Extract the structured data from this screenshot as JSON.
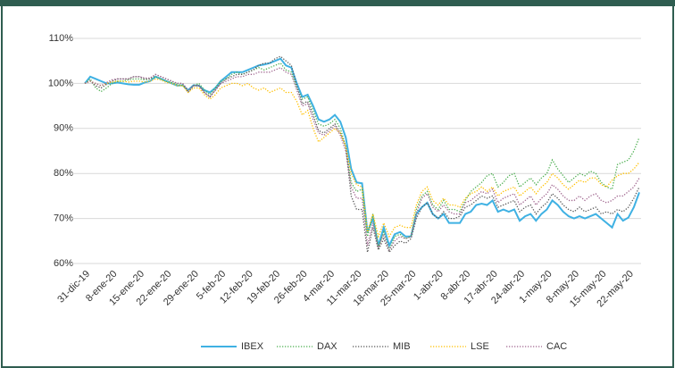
{
  "chart_data": {
    "type": "line",
    "categories": [
      "31-dic-19",
      null,
      null,
      null,
      null,
      "8-ene-20",
      null,
      null,
      null,
      null,
      "15-ene-20",
      null,
      null,
      null,
      null,
      "22-ene-20",
      null,
      null,
      null,
      null,
      "29-ene-20",
      null,
      null,
      null,
      null,
      "5-feb-20",
      null,
      null,
      null,
      null,
      "12-feb-20",
      null,
      null,
      null,
      null,
      "19-feb-20",
      null,
      null,
      null,
      null,
      "26-feb-20",
      null,
      null,
      null,
      null,
      "4-mar-20",
      null,
      null,
      null,
      null,
      "11-mar-20",
      null,
      null,
      null,
      null,
      "18-mar-20",
      null,
      null,
      null,
      null,
      "25-mar-20",
      null,
      null,
      null,
      null,
      "1-abr-20",
      null,
      null,
      null,
      null,
      "8-abr-20",
      null,
      null,
      null,
      null,
      "17-abr-20",
      null,
      null,
      null,
      null,
      "24-abr-20",
      null,
      null,
      null,
      null,
      "1-may-20",
      null,
      null,
      null,
      null,
      "8-may-20",
      null,
      null,
      null,
      null,
      "15-may-20",
      null,
      null,
      null,
      null,
      "22-may-20",
      null,
      null
    ],
    "ylim": [
      60,
      110
    ],
    "yticks": [
      {
        "value": 60,
        "label": "60%"
      },
      {
        "value": 70,
        "label": "70%"
      },
      {
        "value": 80,
        "label": "80%"
      },
      {
        "value": 90,
        "label": "90%"
      },
      {
        "value": 100,
        "label": "100%"
      },
      {
        "value": 110,
        "label": "110%"
      }
    ],
    "grid": true,
    "legend": "bottom",
    "series": [
      {
        "name": "IBEX",
        "color": "#3fb1e3",
        "style": "solid",
        "values": [
          100,
          101.5,
          101,
          100.5,
          100,
          100,
          100.2,
          100,
          99.8,
          99.7,
          99.7,
          100.2,
          100.5,
          101.5,
          101,
          100.5,
          100,
          99.5,
          99.6,
          98.5,
          99.6,
          99.5,
          98.5,
          98,
          99,
          100.5,
          101.5,
          102.5,
          102.5,
          102.5,
          103,
          103.5,
          104,
          104.2,
          104.5,
          105,
          105.5,
          104,
          103.5,
          100,
          97,
          97.5,
          95,
          92,
          91.5,
          92,
          93,
          91.5,
          88,
          81,
          78,
          77.8,
          67,
          70,
          64,
          68,
          64,
          66.5,
          67,
          66,
          66,
          71,
          72.5,
          73.5,
          71,
          70,
          71,
          69,
          69,
          69,
          71,
          71.5,
          73,
          73.3,
          73,
          74,
          71.5,
          72,
          71.5,
          72,
          69.5,
          70.5,
          71,
          69.5,
          71,
          72,
          74,
          73,
          71.5,
          70.5,
          70,
          70.5,
          70,
          70.5,
          71,
          70,
          69,
          68,
          71,
          69.5,
          70.2,
          72.5,
          75.8
        ]
      },
      {
        "name": "DAX",
        "color": "#4caf50",
        "style": "dotted",
        "values": [
          100,
          101,
          99,
          98.2,
          99,
          100,
          100.5,
          100.5,
          100.8,
          101,
          101,
          100.8,
          101,
          101.5,
          101,
          100.5,
          100.2,
          99.8,
          99.5,
          98.5,
          99.5,
          100,
          98.5,
          97.5,
          99,
          100.5,
          101,
          102,
          102.5,
          102,
          102.5,
          103,
          103.5,
          103,
          103.5,
          104,
          104.5,
          103,
          102.5,
          99,
          96.5,
          97,
          94,
          91,
          90.5,
          91,
          92,
          90,
          86,
          78,
          76,
          76.5,
          66,
          71,
          63.5,
          67,
          63,
          66,
          66.5,
          65.5,
          66,
          72,
          75,
          76,
          73,
          72,
          74,
          72,
          72,
          71.5,
          74,
          76,
          77,
          78,
          79.5,
          80,
          77,
          78,
          79.5,
          80,
          77,
          78,
          79,
          77.5,
          79,
          80,
          83,
          81,
          79.5,
          78,
          79,
          80,
          79.5,
          80.5,
          80,
          78,
          77,
          76.5,
          82,
          82.5,
          83,
          85,
          88
        ]
      },
      {
        "name": "MIB",
        "color": "#595959",
        "style": "dotted",
        "values": [
          100,
          100.5,
          99.5,
          99,
          99.8,
          100.5,
          101,
          101,
          101,
          101.5,
          101.5,
          101,
          101,
          102,
          101.5,
          101,
          100.5,
          100,
          100,
          98,
          99.5,
          99.5,
          98,
          97,
          98.5,
          100,
          101,
          101.5,
          102,
          102,
          102.5,
          103,
          104,
          104.5,
          104.5,
          105.5,
          106,
          105,
          104,
          99.5,
          95.5,
          96,
          93,
          89.5,
          89,
          90,
          91,
          89,
          86,
          75,
          72,
          72,
          62.5,
          68,
          63,
          65.5,
          62.5,
          64,
          65,
          64.5,
          65.5,
          70,
          72.5,
          73.5,
          71,
          70,
          71.5,
          70,
          70,
          70.5,
          72.5,
          73,
          74,
          75,
          74.5,
          75,
          72.5,
          73,
          73.5,
          74,
          71.5,
          72.5,
          73,
          71,
          72.5,
          73.5,
          75.5,
          74.5,
          73,
          72,
          71.5,
          72.5,
          71.5,
          72,
          72.5,
          71,
          71.5,
          71,
          72,
          71.5,
          72.5,
          74.5,
          77
        ]
      },
      {
        "name": "LSE",
        "color": "#ffc000",
        "style": "dotted",
        "values": [
          100,
          100.5,
          100,
          99.5,
          100,
          100.3,
          100.5,
          100.5,
          100.3,
          100.5,
          100.5,
          100.3,
          100.5,
          101,
          100.8,
          100.2,
          100,
          99.5,
          99.5,
          98,
          99,
          99,
          97.5,
          96.5,
          97.5,
          99,
          99.5,
          100,
          100,
          99.5,
          100,
          99,
          98.5,
          99,
          98,
          98.5,
          99,
          98,
          98,
          96,
          93,
          94,
          90,
          87,
          88,
          89,
          90,
          89,
          86,
          80,
          77.5,
          77,
          67,
          71,
          66,
          69,
          66,
          68,
          68.5,
          68,
          68,
          73,
          76,
          77,
          74,
          73,
          74.5,
          73,
          73,
          72.5,
          74.5,
          75.5,
          76,
          77,
          76,
          77,
          75,
          76,
          76.5,
          77,
          75,
          76,
          77,
          75.5,
          77,
          78,
          80,
          79,
          77.5,
          76.5,
          77.5,
          78.5,
          78,
          79,
          79,
          77.5,
          77,
          78.5,
          79.5,
          80,
          80,
          81,
          82.5
        ]
      },
      {
        "name": "CAC",
        "color": "#a0668f",
        "style": "dotted",
        "values": [
          100,
          100.5,
          100,
          99.5,
          100.2,
          100.8,
          101,
          101,
          101,
          101.5,
          101.5,
          101.2,
          101.2,
          102,
          101.5,
          101,
          100.5,
          100,
          100,
          98.5,
          99.5,
          99.5,
          98,
          97,
          98.5,
          100,
          100.5,
          101,
          101.5,
          101.5,
          102,
          102,
          102.5,
          102.5,
          102.5,
          103,
          103.5,
          102.5,
          102,
          98.5,
          95,
          95.5,
          92,
          89,
          88.5,
          89.5,
          90.5,
          88.5,
          85,
          77,
          74.5,
          74.5,
          64,
          69,
          63.5,
          66.5,
          63,
          65,
          66,
          65.5,
          66,
          71,
          74.5,
          75.5,
          72.5,
          71.5,
          73,
          71.5,
          71,
          71,
          73.5,
          74,
          75,
          76,
          75.5,
          76.5,
          73.5,
          74.5,
          75,
          75.5,
          73,
          74,
          75,
          73,
          74.5,
          75.5,
          77.5,
          76.5,
          75,
          74,
          74,
          75,
          74,
          75,
          75.5,
          74,
          73.5,
          74,
          75,
          75,
          76,
          77,
          79
        ]
      }
    ]
  }
}
